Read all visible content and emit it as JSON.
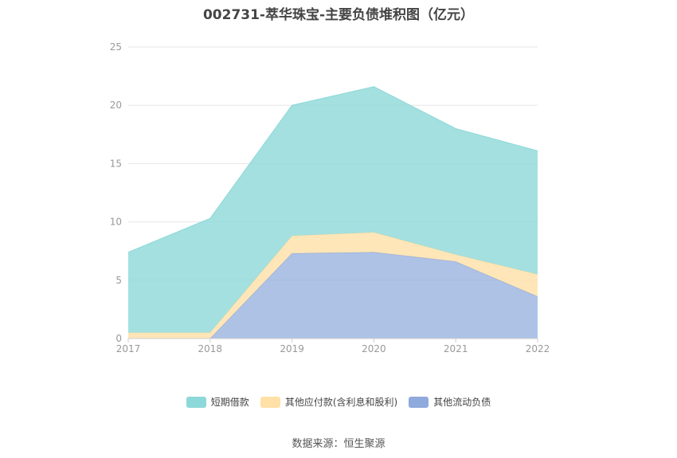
{
  "chart_data": {
    "type": "area",
    "stacked": true,
    "title": "002731-萃华珠宝-主要负债堆积图（亿元）",
    "categories": [
      "2017",
      "2018",
      "2019",
      "2020",
      "2021",
      "2022"
    ],
    "ylim": [
      0,
      25
    ],
    "yticks": [
      0,
      5,
      10,
      15,
      20,
      25
    ],
    "grid": true,
    "legend_position": "bottom",
    "series": [
      {
        "name": "其他流动负债",
        "color": "#8faadc",
        "values": [
          0,
          0,
          7.3,
          7.4,
          6.6,
          3.6
        ]
      },
      {
        "name": "其他应付款(含利息和股利)",
        "color": "#ffe0a6",
        "values": [
          0.5,
          0.5,
          1.5,
          1.7,
          0.6,
          1.9
        ]
      },
      {
        "name": "短期借款",
        "color": "#8dd8d8",
        "values": [
          6.9,
          9.8,
          11.2,
          12.5,
          10.8,
          10.6
        ]
      }
    ],
    "legend_order": [
      "短期借款",
      "其他应付款(含利息和股利)",
      "其他流动负债"
    ],
    "source": "数据来源：恒生聚源"
  }
}
